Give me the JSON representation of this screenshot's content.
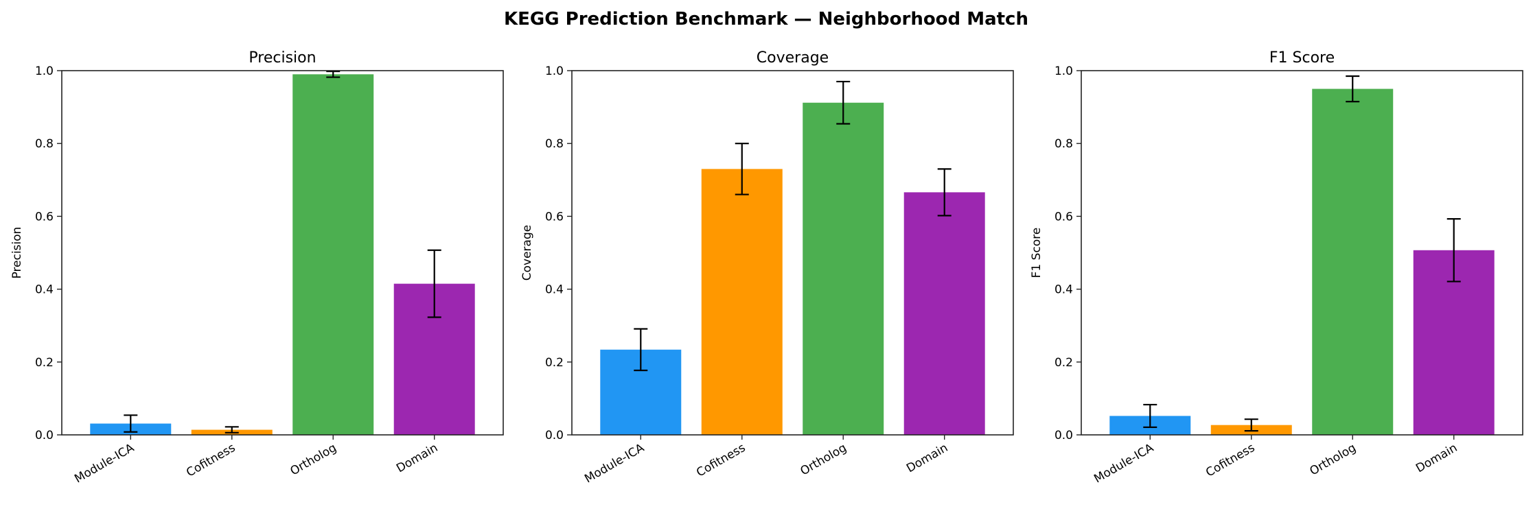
{
  "suptitle": "KEGG Prediction Benchmark — Neighborhood Match",
  "chart_data": [
    {
      "type": "bar",
      "title": "Precision",
      "ylabel": "Precision",
      "xlabel": "",
      "categories": [
        "Module-ICA",
        "Cofitness",
        "Ortholog",
        "Domain"
      ],
      "values": [
        0.031,
        0.014,
        0.99,
        0.415
      ],
      "errors": [
        0.023,
        0.008,
        0.008,
        0.092
      ],
      "colors": [
        "#2196F3",
        "#FF9800",
        "#4CAF50",
        "#9C27B0"
      ],
      "ylim": [
        0,
        1.0
      ],
      "yticks": [
        "0.0",
        "0.2",
        "0.4",
        "0.6",
        "0.8",
        "1.0"
      ],
      "grid": false
    },
    {
      "type": "bar",
      "title": "Coverage",
      "ylabel": "Coverage",
      "xlabel": "",
      "categories": [
        "Module-ICA",
        "Cofitness",
        "Ortholog",
        "Domain"
      ],
      "values": [
        0.234,
        0.73,
        0.912,
        0.666
      ],
      "errors": [
        0.057,
        0.07,
        0.058,
        0.064
      ],
      "colors": [
        "#2196F3",
        "#FF9800",
        "#4CAF50",
        "#9C27B0"
      ],
      "ylim": [
        0,
        1.0
      ],
      "yticks": [
        "0.0",
        "0.2",
        "0.4",
        "0.6",
        "0.8",
        "1.0"
      ],
      "grid": false
    },
    {
      "type": "bar",
      "title": "F1 Score",
      "ylabel": "F1 Score",
      "xlabel": "",
      "categories": [
        "Module-ICA",
        "Cofitness",
        "Ortholog",
        "Domain"
      ],
      "values": [
        0.052,
        0.027,
        0.95,
        0.507
      ],
      "errors": [
        0.031,
        0.016,
        0.035,
        0.086
      ],
      "colors": [
        "#2196F3",
        "#FF9800",
        "#4CAF50",
        "#9C27B0"
      ],
      "ylim": [
        0,
        1.0
      ],
      "yticks": [
        "0.0",
        "0.2",
        "0.4",
        "0.6",
        "0.8",
        "1.0"
      ],
      "grid": false
    }
  ]
}
